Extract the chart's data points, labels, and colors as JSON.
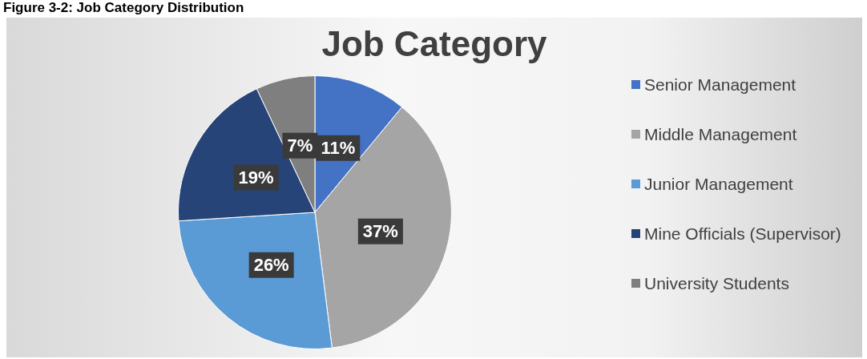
{
  "chart_data": {
    "type": "pie",
    "title": "Job Category",
    "annotations": [
      "Figure 3-2: Job Category Distribution"
    ],
    "categories": [
      "Senior Management",
      "Middle Management",
      "Junior Management",
      "Mine Officials (Supervisor)",
      "University Students"
    ],
    "values": [
      11,
      37,
      26,
      19,
      7
    ],
    "value_labels": [
      "11%",
      "37%",
      "26%",
      "19%",
      "7%"
    ],
    "colors": [
      "#4472c4",
      "#a5a5a5",
      "#5b9bd5",
      "#264478",
      "#7f7f7f"
    ],
    "legend": "right"
  }
}
